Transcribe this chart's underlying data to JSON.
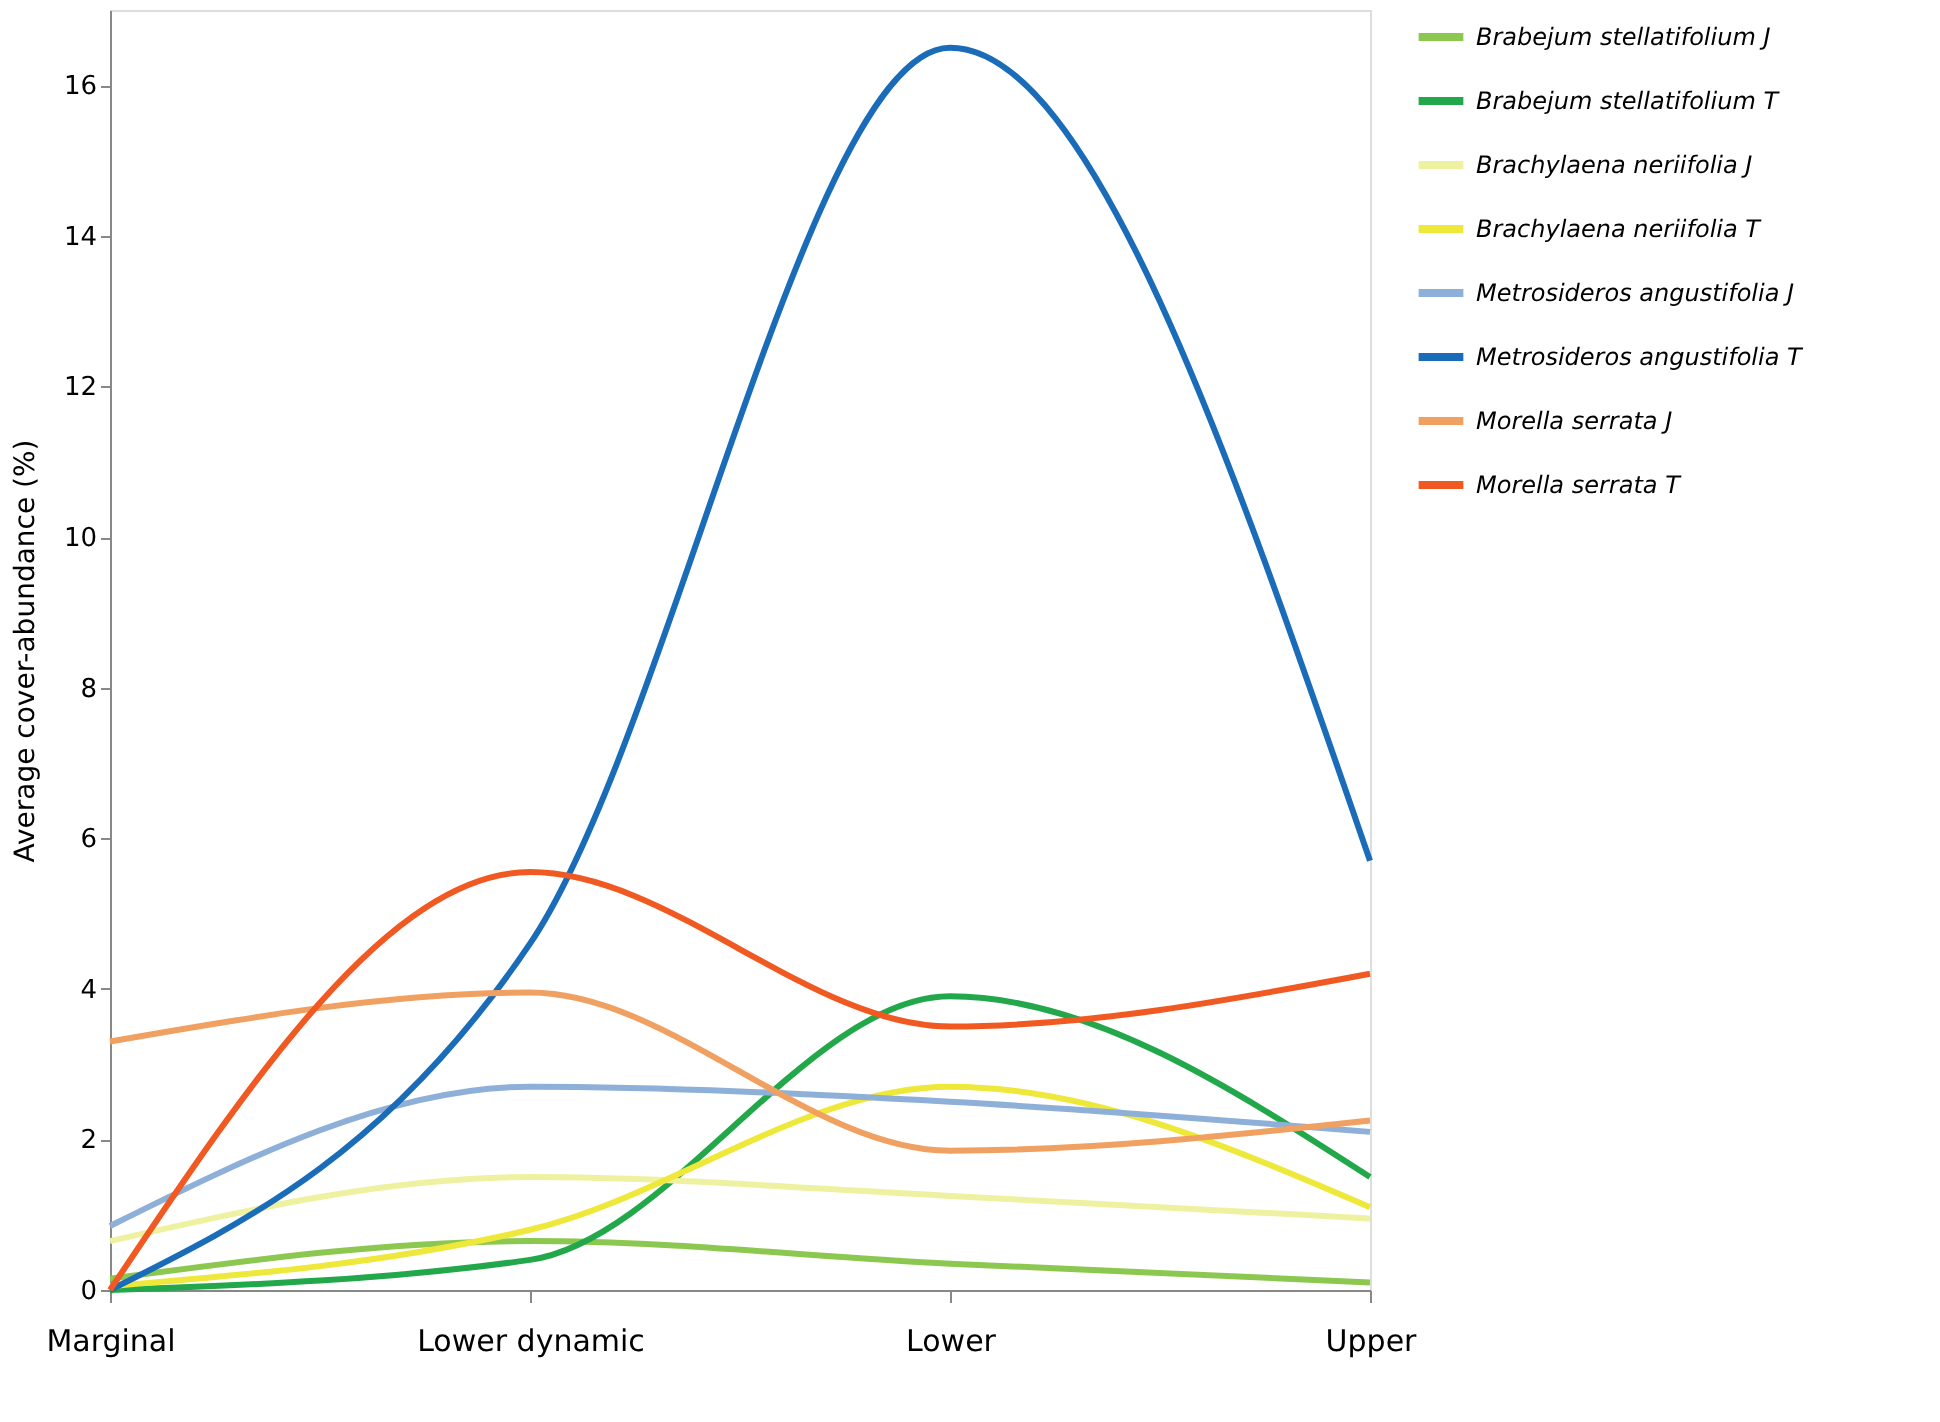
{
  "chart_data": {
    "type": "line",
    "ylabel": "Average cover-abundance (%)",
    "categories": [
      "Marginal",
      "Lower dynamic",
      "Lower",
      "Upper"
    ],
    "ylim": [
      0,
      17
    ],
    "yticks": [
      0,
      2,
      4,
      6,
      8,
      10,
      12,
      14,
      16
    ],
    "grid": false,
    "legend": "right",
    "marker": "none",
    "line_style": "solid",
    "series": [
      {
        "name": "Brabejum stellatifolium J",
        "color": "#8cc850",
        "values": [
          0.15,
          0.65,
          0.35,
          0.1
        ]
      },
      {
        "name": "Brabejum stellatifolium T",
        "color": "#22a84a",
        "values": [
          0,
          0.4,
          3.9,
          1.5
        ]
      },
      {
        "name": "Brachylaena neriifolia J",
        "color": "#eef2a0",
        "values": [
          0.65,
          1.5,
          1.25,
          0.95
        ]
      },
      {
        "name": "Brachylaena neriifolia T",
        "color": "#eee83a",
        "values": [
          0.05,
          0.8,
          2.7,
          1.1
        ]
      },
      {
        "name": "Metrosideros angustifolia J",
        "color": "#8eb0d8",
        "values": [
          0.85,
          2.7,
          2.5,
          2.1
        ]
      },
      {
        "name": "Metrosideros angustifolia T",
        "color": "#1a6cb8",
        "values": [
          0,
          4.6,
          16.5,
          5.7
        ]
      },
      {
        "name": "Morella serrata J",
        "color": "#f0a060",
        "values": [
          3.3,
          3.95,
          1.85,
          2.25
        ]
      },
      {
        "name": "Morella serrata T",
        "color": "#f05a22",
        "values": [
          0,
          5.55,
          3.5,
          4.2
        ]
      }
    ]
  }
}
